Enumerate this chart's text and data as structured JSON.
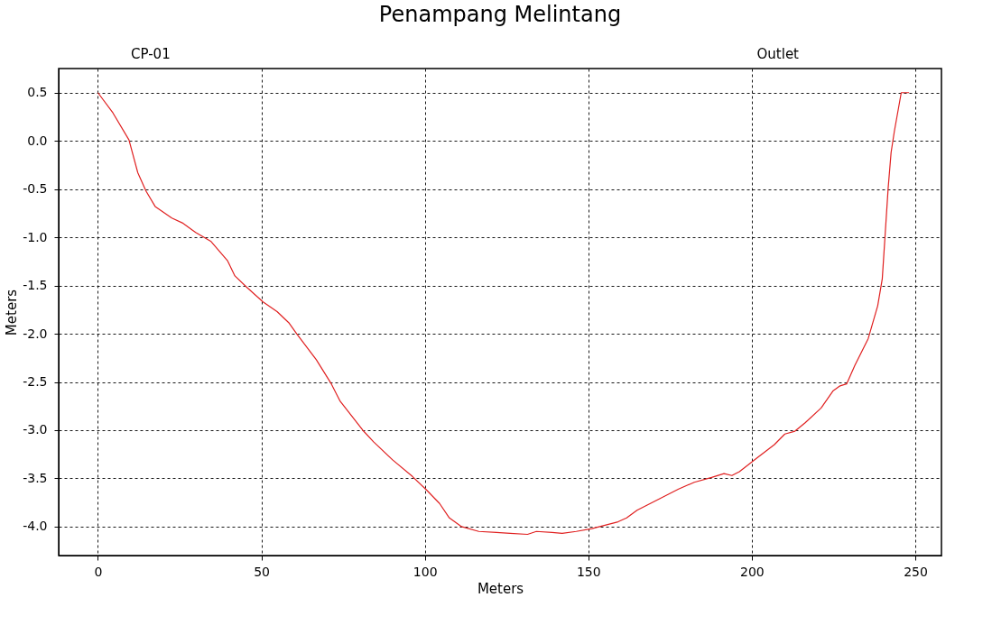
{
  "chart_data": {
    "type": "line",
    "title": "Penampang Melintang",
    "xlabel": "Meters",
    "ylabel": "Meters",
    "annotations": [
      "CP-01",
      "Outlet"
    ],
    "xlim": [
      -12,
      258
    ],
    "ylim": [
      -4.3,
      0.75
    ],
    "xticks": [
      0,
      50,
      100,
      150,
      200,
      250
    ],
    "yticks": [
      {
        "value": -4,
        "label": "-4.0"
      },
      -3.5,
      {
        "value": -3,
        "label": "-3.0"
      },
      -2.5,
      {
        "value": -2,
        "label": "-2.0"
      },
      -1.5,
      {
        "value": -1,
        "label": "-1.0"
      },
      -0.5,
      {
        "value": 0,
        "label": "0.0"
      },
      0.5
    ],
    "grid": true,
    "line_style": "solid",
    "series": [
      {
        "color": "#e02020",
        "x": [
          0,
          4.6,
          9.5,
          12.2,
          14.7,
          17.5,
          22.6,
          25.8,
          29.9,
          34.5,
          39.6,
          41.9,
          45.6,
          50.5,
          54.8,
          58.5,
          60.8,
          66.8,
          71.4,
          74.1,
          81.0,
          84.3,
          90.2,
          96.2,
          100.5,
          104.5,
          107.5,
          111.2,
          116.5,
          121.9,
          126.1,
          131.4,
          134.1,
          138.9,
          142.0,
          146.3,
          151.1,
          159.1,
          161.7,
          164.9,
          171.8,
          177.6,
          182.4,
          187.7,
          191.5,
          193.9,
          196.2,
          201.5,
          206.9,
          210.1,
          213.2,
          216.4,
          221.2,
          224.9,
          227.0,
          229.0,
          231.5,
          235.6,
          238.5,
          239.9,
          240.8,
          241.7,
          242.6,
          243.6,
          245.7,
          248.1
        ],
        "values": [
          0.5,
          0.29,
          0.01,
          -0.33,
          -0.52,
          -0.68,
          -0.8,
          -0.85,
          -0.95,
          -1.04,
          -1.24,
          -1.4,
          -1.52,
          -1.67,
          -1.77,
          -1.89,
          -2.0,
          -2.27,
          -2.52,
          -2.7,
          -3.0,
          -3.12,
          -3.31,
          -3.48,
          -3.62,
          -3.76,
          -3.91,
          -4.0,
          -4.05,
          -4.06,
          -4.07,
          -4.08,
          -4.05,
          -4.06,
          -4.07,
          -4.05,
          -4.02,
          -3.95,
          -3.91,
          -3.83,
          -3.71,
          -3.61,
          -3.54,
          -3.49,
          -3.45,
          -3.47,
          -3.43,
          -3.29,
          -3.15,
          -3.04,
          -3.01,
          -2.92,
          -2.77,
          -2.59,
          -2.54,
          -2.52,
          -2.33,
          -2.05,
          -1.71,
          -1.43,
          -0.96,
          -0.49,
          -0.12,
          0.1,
          0.5,
          0.5
        ]
      }
    ]
  }
}
